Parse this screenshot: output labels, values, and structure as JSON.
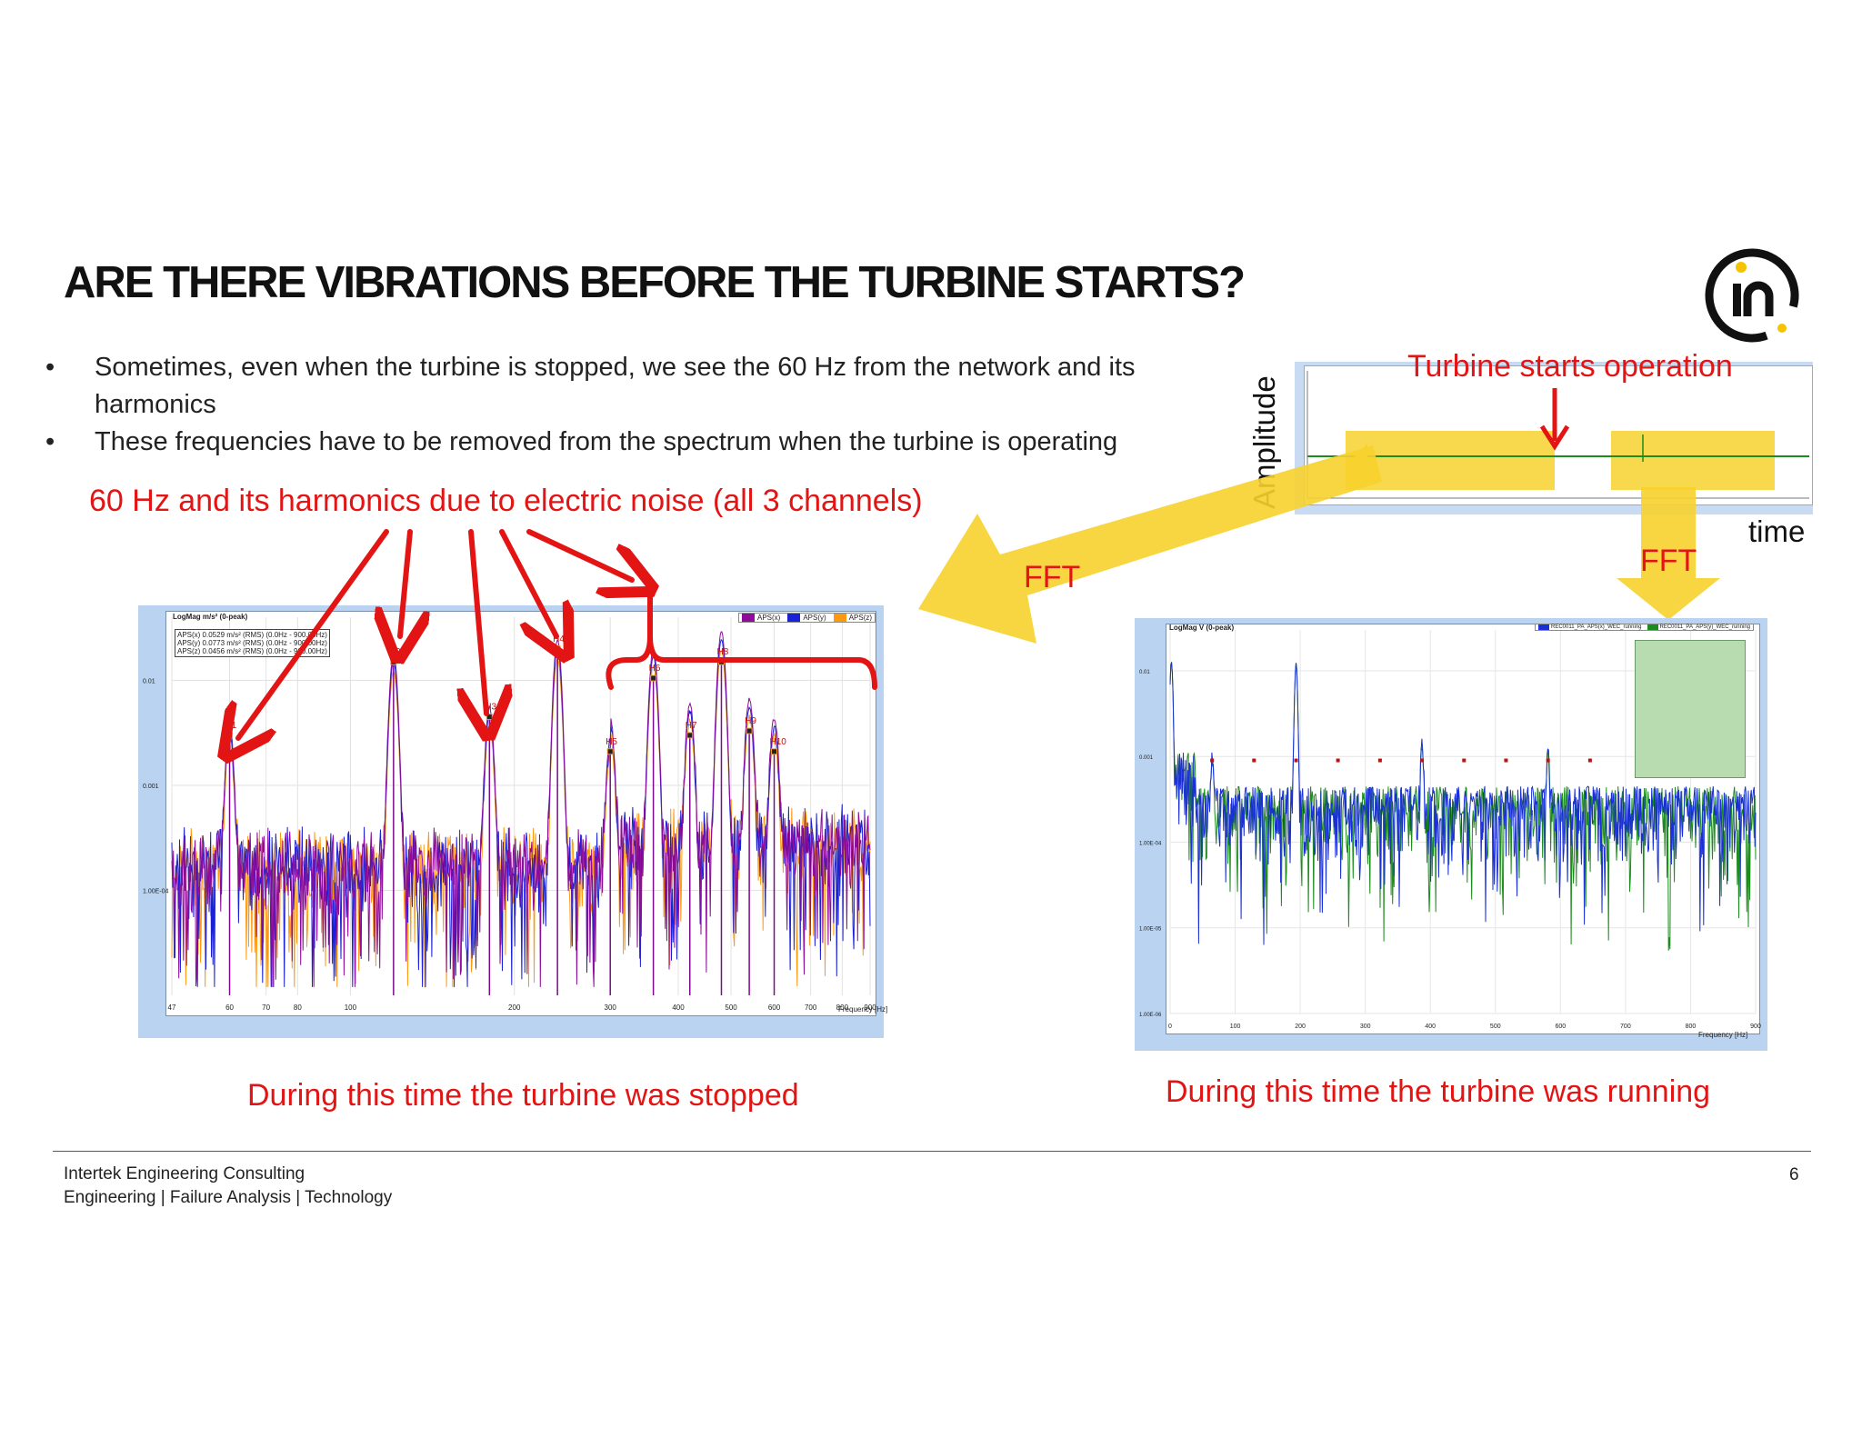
{
  "slide": {
    "title": "ARE THERE VIBRATIONS BEFORE THE TURBINE STARTS?",
    "bullets": [
      "Sometimes, even when the turbine is stopped, we see the 60 Hz from the network and its harmonics",
      "These frequencies have to be removed from the spectrum when the turbine is operating"
    ],
    "noise_label": "60 Hz and its harmonics due to electric noise (all 3 channels)",
    "turbine_starts_label": "Turbine starts operation",
    "fft_label_left": "FFT",
    "fft_label_right": "FFT",
    "amplitude_label": "Amplitude",
    "time_label": "time",
    "caption_stopped": "During this time the turbine was stopped",
    "caption_running": "During this time the turbine was running",
    "footer_company": "Intertek Engineering Consulting",
    "footer_services": "Engineering | Failure Analysis | Technology",
    "page_number": "6",
    "colors": {
      "red": "#e31414",
      "highlight": "#f7d22e",
      "panel": "#b9d3f0"
    }
  },
  "chart_data": [
    {
      "type": "line",
      "id": "stopped-spectrum",
      "ylabel": "LogMag m/s² (0-peak)",
      "xlabel": "Frequency [Hz]",
      "x_scale": "log",
      "y_scale": "log",
      "xlim": [
        47,
        900
      ],
      "ylim": [
        1e-05,
        0.04
      ],
      "xticks": [
        "47",
        "60",
        "70",
        "80",
        "100",
        "200",
        "300",
        "400",
        "500",
        "600",
        "700",
        "800",
        "900"
      ],
      "yticks": [
        "0.01",
        "0.001",
        "1.00E-04"
      ],
      "legend": [
        "APS(x)",
        "APS(y)",
        "APS(z)"
      ],
      "legend_position": "top-right",
      "stats": [
        "APS(x) 0.0529 m/s² (RMS) (0.0Hz - 900.00Hz)",
        "APS(y) 0.0773 m/s² (RMS) (0.0Hz - 900.00Hz)",
        "APS(z) 0.0456 m/s² (RMS) (0.0Hz - 900.00Hz)"
      ],
      "series": [
        {
          "name": "APS(x)",
          "color": "#8e0c9a"
        },
        {
          "name": "APS(y)",
          "color": "#1a20d6"
        },
        {
          "name": "APS(z)",
          "color": "#ff9a10"
        }
      ],
      "harmonic_peaks": [
        {
          "label": "H1",
          "freq": 60,
          "amp": 0.003
        },
        {
          "label": "H2",
          "freq": 120,
          "amp": 0.015
        },
        {
          "label": "H3",
          "freq": 180,
          "amp": 0.0045
        },
        {
          "label": "H4",
          "freq": 240,
          "amp": 0.02
        },
        {
          "label": "H5",
          "freq": 300,
          "amp": 0.0021
        },
        {
          "label": "H6",
          "freq": 360,
          "amp": 0.0105
        },
        {
          "label": "H7",
          "freq": 420,
          "amp": 0.003
        },
        {
          "label": "H8",
          "freq": 480,
          "amp": 0.015
        },
        {
          "label": "H9",
          "freq": 540,
          "amp": 0.0033
        },
        {
          "label": "H10",
          "freq": 600,
          "amp": 0.0021
        }
      ]
    },
    {
      "type": "line",
      "id": "running-spectrum",
      "ylabel": "LogMag V (0-peak)",
      "xlabel": "Frequency [Hz]",
      "x_scale": "linear",
      "y_scale": "log",
      "xlim": [
        0,
        900
      ],
      "ylim": [
        1e-06,
        0.03
      ],
      "xticks": [
        "0",
        "100",
        "200",
        "300",
        "400",
        "500",
        "600",
        "700",
        "800",
        "900"
      ],
      "yticks": [
        "0.01",
        "0.001",
        "1.00E-04",
        "1.00E-05",
        "1.00E-06"
      ],
      "legend": [
        "REC0011_PA_APS(x)_WEC_running",
        "REC0011_PA_APS(y)_WEC_running"
      ],
      "legend_position": "top-right",
      "series": [
        {
          "name": "REC0011_PA_APS(x)_WEC_running",
          "color": "#1a2fd6"
        },
        {
          "name": "REC0011_PA_APS(y)_WEC_running",
          "color": "#1c8c1c"
        }
      ],
      "peaks_hz": [
        64.5,
        129,
        193.6,
        258,
        322.7,
        387.2,
        451.8,
        516.3,
        580.9,
        645.5
      ]
    },
    {
      "type": "line",
      "id": "time-signal",
      "ylabel": "Amplitude",
      "xlabel": "time",
      "annotation": "Turbine starts operation"
    }
  ]
}
